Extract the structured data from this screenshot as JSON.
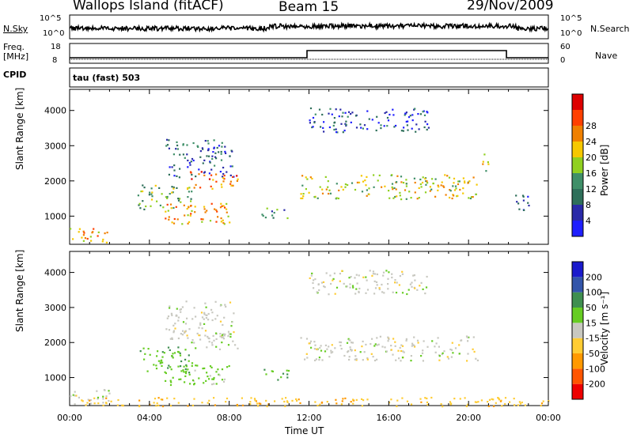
{
  "header": {
    "title": "Wallops Island (fitACF)",
    "beam": "Beam 15",
    "date": "29/Nov/2009"
  },
  "top_panels": {
    "nsky_label": "N.Sky",
    "nsearch_label": "N.Search",
    "noise_ticks": [
      "10^5",
      "10^0"
    ],
    "freq_label": "Freq.",
    "freq_unit": "[MHz]",
    "freq_ticks": [
      "18",
      "8"
    ],
    "nave_label": "Nave",
    "nave_ticks": [
      "60",
      "0"
    ],
    "cpid_label": "CPID",
    "cpid_value": "tau (fast) 503"
  },
  "colors": {
    "power_scale": [
      "#1f1fff",
      "#2a2aa8",
      "#2e6f5a",
      "#3f8f68",
      "#90d020",
      "#f6c800",
      "#f08000",
      "#ff4000",
      "#dd0000"
    ],
    "velocity_scale": [
      "#ee0000",
      "#ff5500",
      "#ff9900",
      "#ffcc33",
      "#c8c8c0",
      "#66cc22",
      "#3f8f50",
      "#3355aa",
      "#1a1acc"
    ]
  },
  "chart_data": [
    {
      "type": "heatmap",
      "panel": "power",
      "xlabel": "",
      "ylabel": "Slant Range [km]",
      "xlim": [
        "00:00",
        "24:00"
      ],
      "ylim": [
        200,
        4600
      ],
      "yticks": [
        "1000",
        "2000",
        "3000",
        "4000"
      ],
      "colorbar_label": "Power [dB]",
      "colorbar_ticks": [
        "4",
        "8",
        "12",
        "16",
        "20",
        "24",
        "28"
      ],
      "colorbar_range": [
        0,
        32
      ],
      "regions": [
        {
          "t0": 0.0,
          "t1": 2.0,
          "r0": 250,
          "r1": 700,
          "value": 20
        },
        {
          "t0": 3.4,
          "t1": 6.2,
          "r0": 1150,
          "r1": 1900,
          "value": 14
        },
        {
          "t0": 4.5,
          "t1": 8.0,
          "r0": 800,
          "r1": 1400,
          "value": 22
        },
        {
          "t0": 4.8,
          "t1": 8.2,
          "r0": 2100,
          "r1": 3200,
          "value": 8
        },
        {
          "t0": 6.0,
          "t1": 8.4,
          "r0": 1800,
          "r1": 2300,
          "value": 24
        },
        {
          "t0": 9.6,
          "t1": 11.0,
          "r0": 950,
          "r1": 1250,
          "value": 12
        },
        {
          "t0": 11.5,
          "t1": 20.5,
          "r0": 1500,
          "r1": 2200,
          "value": 18
        },
        {
          "t0": 12.0,
          "t1": 18.0,
          "r0": 3400,
          "r1": 4100,
          "value": 6
        },
        {
          "t0": 20.6,
          "t1": 21.0,
          "r0": 2200,
          "r1": 2800,
          "value": 16
        },
        {
          "t0": 22.2,
          "t1": 23.0,
          "r0": 1100,
          "r1": 1700,
          "value": 6
        }
      ]
    },
    {
      "type": "heatmap",
      "panel": "velocity",
      "xlabel": "Time UT",
      "ylabel": "Slant Range [km]",
      "xlim": [
        "00:00",
        "24:00"
      ],
      "xticks": [
        "00:00",
        "04:00",
        "08:00",
        "12:00",
        "16:00",
        "20:00",
        "00:00"
      ],
      "ylim": [
        200,
        4600
      ],
      "yticks": [
        "1000",
        "2000",
        "3000",
        "4000"
      ],
      "colorbar_label": "Velocity [m s⁻¹]",
      "colorbar_ticks": [
        "200",
        "100",
        "50",
        "15",
        "-15",
        "-50",
        "-100",
        "-200"
      ],
      "regions": [
        {
          "t0": 0.0,
          "t1": 2.0,
          "r0": 250,
          "r1": 700,
          "value": 0
        },
        {
          "t0": 3.4,
          "t1": 6.2,
          "r0": 1150,
          "r1": 1900,
          "value": 40
        },
        {
          "t0": 4.5,
          "t1": 8.0,
          "r0": 800,
          "r1": 1400,
          "value": 30
        },
        {
          "t0": 4.8,
          "t1": 8.2,
          "r0": 2100,
          "r1": 3200,
          "value": 0
        },
        {
          "t0": 6.0,
          "t1": 8.4,
          "r0": 1800,
          "r1": 2300,
          "value": 0
        },
        {
          "t0": 9.6,
          "t1": 11.0,
          "r0": 950,
          "r1": 1250,
          "value": 40
        },
        {
          "t0": 11.5,
          "t1": 20.5,
          "r0": 1500,
          "r1": 2200,
          "value": 0
        },
        {
          "t0": 12.0,
          "t1": 18.0,
          "r0": 3400,
          "r1": 4100,
          "value": 0
        },
        {
          "t0": 0.0,
          "t1": 24.0,
          "r0": 200,
          "r1": 450,
          "value": -40
        }
      ]
    }
  ]
}
